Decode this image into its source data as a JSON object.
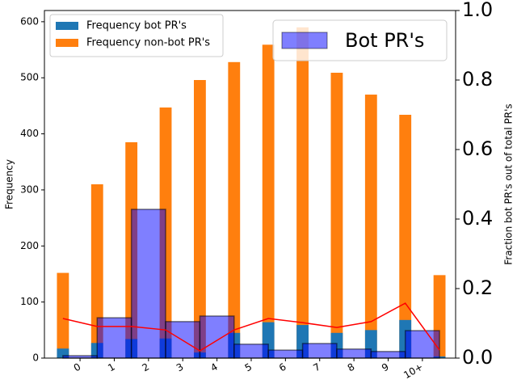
{
  "chart_data": {
    "type": "bar",
    "ylabel": "Frequency",
    "y2label": "Fraction bot PR's out of total PR's",
    "xlim": [
      -1.04,
      10.97
    ],
    "xticks": [
      0,
      1,
      2,
      3,
      4,
      5,
      6,
      7,
      8,
      9,
      {
        "value": 10,
        "label": "10+"
      }
    ],
    "ylim": [
      0,
      620
    ],
    "yticks": [
      0,
      100,
      200,
      300,
      400,
      500,
      600
    ],
    "y2lim": [
      0,
      1
    ],
    "y2ticks": [
      {
        "value": 0,
        "label": "0.0"
      },
      0.2,
      0.4,
      0.6,
      0.8,
      {
        "value": 1,
        "label": "1.0"
      }
    ],
    "series": [
      {
        "name": "Frequency non-bot PR's",
        "color": "#ff7f0e",
        "kind": "bar",
        "x": [
          -0.5,
          0.5,
          1.5,
          2.5,
          3.5,
          4.5,
          5.5,
          6.5,
          7.5,
          8.5,
          9.5,
          10.5
        ],
        "values": [
          152,
          310,
          385,
          447,
          496,
          528,
          559,
          590,
          509,
          470,
          434,
          148
        ]
      },
      {
        "name": "Frequency bot PR's",
        "color": "#1f77b4",
        "kind": "bar",
        "x": [
          -0.5,
          0.5,
          1.5,
          2.5,
          3.5,
          4.5,
          5.5,
          6.5,
          7.5,
          8.5,
          9.5,
          10.5
        ],
        "values": [
          17,
          27,
          34,
          35,
          10,
          45,
          64,
          59,
          45,
          50,
          68,
          3
        ]
      },
      {
        "name": "Bot PR's",
        "color": "#0000ff",
        "kind": "wide-bar",
        "axis": "y2",
        "x": [
          0,
          1,
          2,
          3,
          4,
          5,
          6,
          7,
          8,
          9,
          10
        ],
        "values": [
          0.007,
          0.116,
          0.428,
          0.105,
          0.121,
          0.04,
          0.023,
          0.042,
          0.026,
          0.019,
          0.079
        ]
      },
      {
        "color": "#ff0000",
        "kind": "line",
        "axis": "y2",
        "x": [
          -0.5,
          0.5,
          1.5,
          2.5,
          3.5,
          4.5,
          5.5,
          6.5,
          7.5,
          8.5,
          9.5,
          10.5
        ],
        "values": [
          0.114,
          0.091,
          0.091,
          0.081,
          0.021,
          0.081,
          0.114,
          0.102,
          0.088,
          0.105,
          0.158,
          0.023
        ]
      }
    ]
  }
}
